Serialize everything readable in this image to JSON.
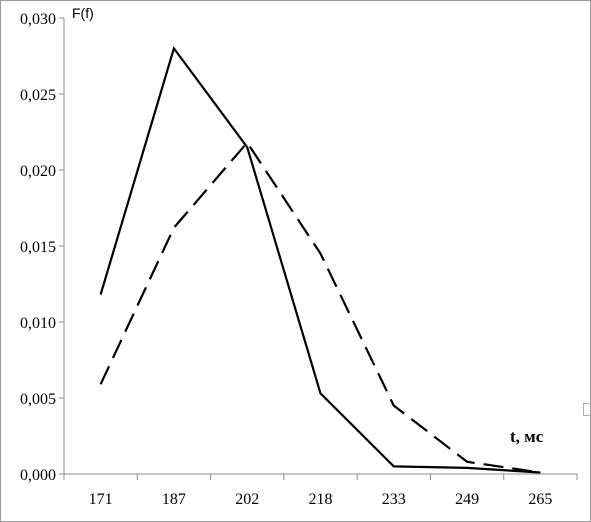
{
  "chart_data": {
    "type": "line",
    "xlabel": "t, мс",
    "ylabel": "F(f)",
    "categories": [
      "171",
      "187",
      "202",
      "218",
      "233",
      "249",
      "265"
    ],
    "ylim": [
      0,
      0.03
    ],
    "y_ticks": [
      "0,000",
      "0,005",
      "0,010",
      "0,015",
      "0,020",
      "0,025",
      "0,030"
    ],
    "grid": false,
    "legend": "none",
    "series": [
      {
        "style": "solid",
        "color": "#000000",
        "points": [
          {
            "x": "171",
            "y": 0.0118
          },
          {
            "x": "187",
            "y": 0.028
          },
          {
            "x": "202",
            "y": 0.0215
          },
          {
            "x": "218",
            "y": 0.0053
          },
          {
            "x": "233",
            "y": 0.0005
          },
          {
            "x": "249",
            "y": 0.0004
          },
          {
            "x": "265",
            "y": 0.0001
          }
        ]
      },
      {
        "style": "dashed",
        "color": "#000000",
        "points": [
          {
            "x": "171",
            "y": 0.0059
          },
          {
            "x": "187",
            "y": 0.0162
          },
          {
            "x": "202",
            "y": 0.0218
          },
          {
            "x": "218",
            "y": 0.0145
          },
          {
            "x": "233",
            "y": 0.0045
          },
          {
            "x": "249",
            "y": 0.0008
          },
          {
            "x": "265",
            "y": 0.0001
          }
        ]
      }
    ]
  }
}
